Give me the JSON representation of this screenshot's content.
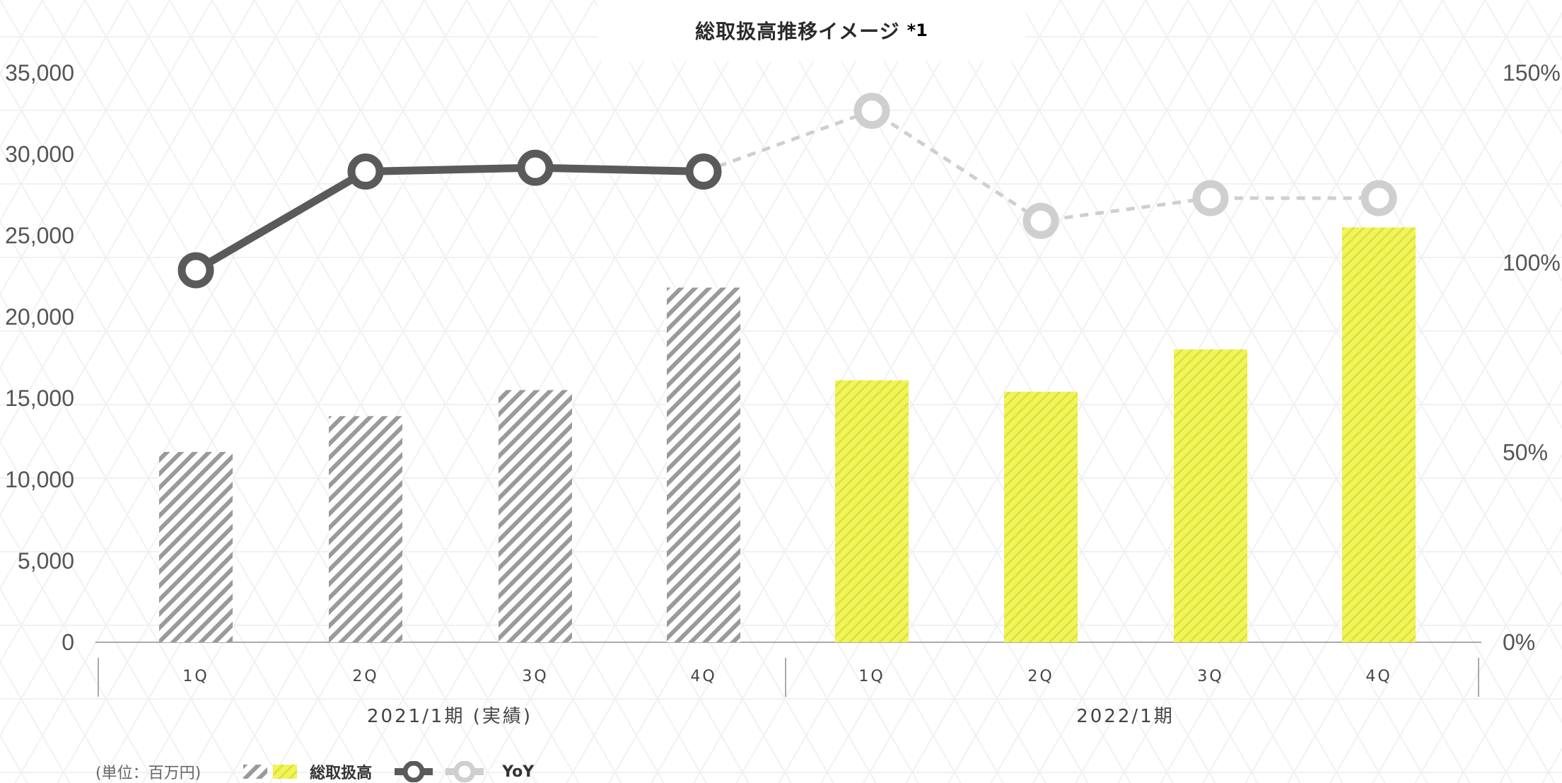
{
  "chart_data": {
    "type": "bar",
    "title": "総取扱高推移イメージ",
    "title_note": "*1",
    "unit_label": "(単位：百万円)",
    "categories": [
      "1Q",
      "2Q",
      "3Q",
      "4Q",
      "1Q",
      "2Q",
      "3Q",
      "4Q"
    ],
    "groups": [
      {
        "label": "2021/1期 (実績)",
        "start": 0,
        "end": 3,
        "style": "gray-hatched"
      },
      {
        "label": "2022/1期",
        "start": 4,
        "end": 7,
        "style": "yellow-hatched"
      }
    ],
    "series": [
      {
        "name": "総取扱高",
        "type": "bar",
        "axis": "left",
        "values": [
          11700,
          13900,
          15500,
          21800,
          16100,
          15400,
          18000,
          25500
        ]
      },
      {
        "name": "YoY",
        "type": "line",
        "axis": "right",
        "values": [
          98,
          124,
          125,
          124,
          140,
          111,
          117,
          117
        ],
        "solid_until_index": 3
      }
    ],
    "y_left": {
      "ylim": [
        0,
        35000
      ],
      "ticks": [
        "0",
        "5,000",
        "10,000",
        "15,000",
        "20,000",
        "25,000",
        "30,000",
        "35,000"
      ]
    },
    "y_right": {
      "ylim": [
        0,
        150
      ],
      "ticks": [
        "0%",
        "50%",
        "100%",
        "150%"
      ]
    },
    "colors": {
      "gray_bar": "#9a9a9a",
      "yellow_bar": "#eef24a",
      "line_dark": "#5a5a5a",
      "line_light": "#cfcfcf",
      "axis": "#aaaaaa"
    },
    "legend_placement": "bottom-left",
    "grid": false
  }
}
